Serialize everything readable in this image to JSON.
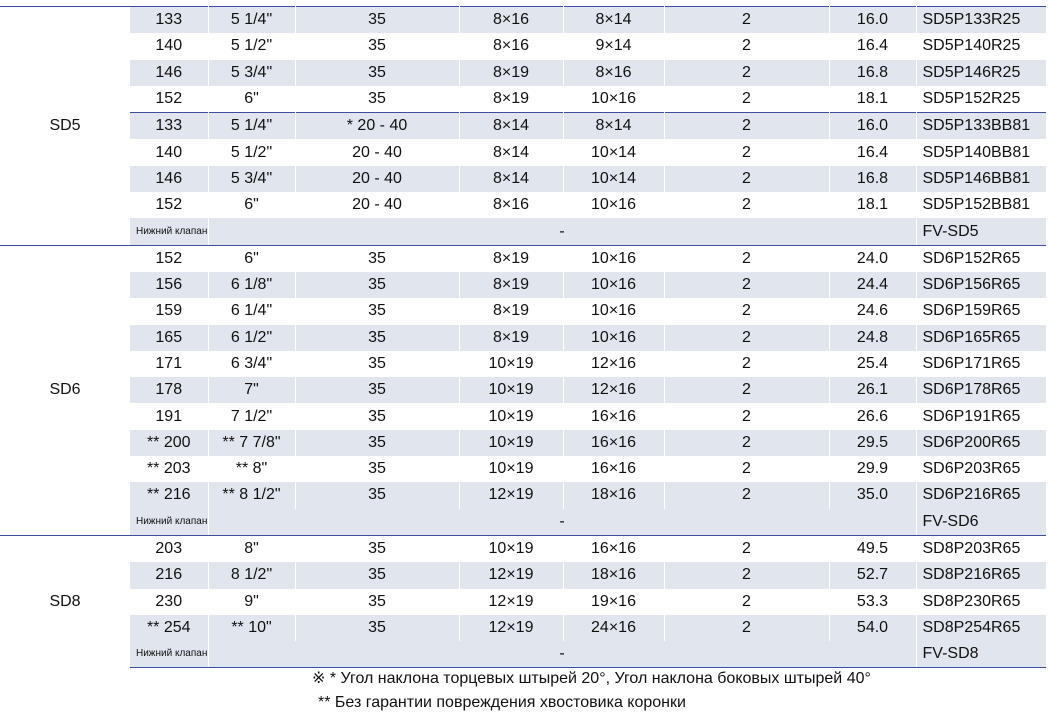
{
  "groups": [
    {
      "name": "SD5",
      "rows": [
        {
          "dmm": "133",
          "din": "5 1/4\"",
          "angle": "35",
          "front": "8×16",
          "side": "8×14",
          "wings": "2",
          "weight": "16.0",
          "code": "SD5P133R25"
        },
        {
          "dmm": "140",
          "din": "5 1/2\"",
          "angle": "35",
          "front": "8×16",
          "side": "9×14",
          "wings": "2",
          "weight": "16.4",
          "code": "SD5P140R25"
        },
        {
          "dmm": "146",
          "din": "5 3/4\"",
          "angle": "35",
          "front": "8×19",
          "side": "8×16",
          "wings": "2",
          "weight": "16.8",
          "code": "SD5P146R25"
        },
        {
          "dmm": "152",
          "din": "6\"",
          "angle": "35",
          "front": "8×19",
          "side": "10×16",
          "wings": "2",
          "weight": "18.1",
          "code": "SD5P152R25"
        },
        {
          "dmm": "133",
          "din": "5 1/4\"",
          "angle": "* 20 - 40",
          "front": "8×14",
          "side": "8×14",
          "wings": "2",
          "weight": "16.0",
          "code": "SD5P133BB81"
        },
        {
          "dmm": "140",
          "din": "5 1/2\"",
          "angle": "20 - 40",
          "front": "8×14",
          "side": "10×14",
          "wings": "2",
          "weight": "16.4",
          "code": "SD5P140BB81"
        },
        {
          "dmm": "146",
          "din": "5 3/4\"",
          "angle": "20 - 40",
          "front": "8×14",
          "side": "10×14",
          "wings": "2",
          "weight": "16.8",
          "code": "SD5P146BB81"
        },
        {
          "dmm": "152",
          "din": "6\"",
          "angle": "20 - 40",
          "front": "8×16",
          "side": "10×16",
          "wings": "2",
          "weight": "18.1",
          "code": "SD5P152BB81"
        }
      ],
      "valve": {
        "label": "Нижний клапан",
        "dash": "-",
        "code": "FV-SD5"
      }
    },
    {
      "name": "SD6",
      "rows": [
        {
          "dmm": "152",
          "din": "6\"",
          "angle": "35",
          "front": "8×19",
          "side": "10×16",
          "wings": "2",
          "weight": "24.0",
          "code": "SD6P152R65"
        },
        {
          "dmm": "156",
          "din": "6 1/8\"",
          "angle": "35",
          "front": "8×19",
          "side": "10×16",
          "wings": "2",
          "weight": "24.4",
          "code": "SD6P156R65"
        },
        {
          "dmm": "159",
          "din": "6 1/4\"",
          "angle": "35",
          "front": "8×19",
          "side": "10×16",
          "wings": "2",
          "weight": "24.6",
          "code": "SD6P159R65"
        },
        {
          "dmm": "165",
          "din": "6 1/2\"",
          "angle": "35",
          "front": "8×19",
          "side": "10×16",
          "wings": "2",
          "weight": "24.8",
          "code": "SD6P165R65"
        },
        {
          "dmm": "171",
          "din": "6 3/4\"",
          "angle": "35",
          "front": "10×19",
          "side": "12×16",
          "wings": "2",
          "weight": "25.4",
          "code": "SD6P171R65"
        },
        {
          "dmm": "178",
          "din": "7\"",
          "angle": "35",
          "front": "10×19",
          "side": "12×16",
          "wings": "2",
          "weight": "26.1",
          "code": "SD6P178R65"
        },
        {
          "dmm": "191",
          "din": "7 1/2\"",
          "angle": "35",
          "front": "10×19",
          "side": "16×16",
          "wings": "2",
          "weight": "26.6",
          "code": "SD6P191R65"
        },
        {
          "dmm": "** 200",
          "din": "** 7 7/8\"",
          "angle": "35",
          "front": "10×19",
          "side": "16×16",
          "wings": "2",
          "weight": "29.5",
          "code": "SD6P200R65"
        },
        {
          "dmm": "** 203",
          "din": "** 8\"",
          "angle": "35",
          "front": "10×19",
          "side": "16×16",
          "wings": "2",
          "weight": "29.9",
          "code": "SD6P203R65"
        },
        {
          "dmm": "** 216",
          "din": "** 8 1/2\"",
          "angle": "35",
          "front": "12×19",
          "side": "18×16",
          "wings": "2",
          "weight": "35.0",
          "code": "SD6P216R65"
        }
      ],
      "valve": {
        "label": "Нижний клапан",
        "dash": "-",
        "code": "FV-SD6"
      }
    },
    {
      "name": "SD8",
      "rows": [
        {
          "dmm": "203",
          "din": "8\"",
          "angle": "35",
          "front": "10×19",
          "side": "16×16",
          "wings": "2",
          "weight": "49.5",
          "code": "SD8P203R65"
        },
        {
          "dmm": "216",
          "din": "8 1/2\"",
          "angle": "35",
          "front": "12×19",
          "side": "18×16",
          "wings": "2",
          "weight": "52.7",
          "code": "SD8P216R65"
        },
        {
          "dmm": "230",
          "din": "9\"",
          "angle": "35",
          "front": "12×19",
          "side": "19×16",
          "wings": "2",
          "weight": "53.3",
          "code": "SD8P230R65"
        },
        {
          "dmm": "** 254",
          "din": "** 10\"",
          "angle": "35",
          "front": "12×19",
          "side": "24×16",
          "wings": "2",
          "weight": "54.0",
          "code": "SD8P254R65"
        }
      ],
      "valve": {
        "label": "Нижний клапан",
        "dash": "-",
        "code": "FV-SD8"
      }
    }
  ],
  "notes": {
    "note1": "※ * Угол наклона торцевых штырей 20°, Угол наклона  боковых штырей 40°",
    "note2": "** Без гарантии повреждения хвостовика коронки"
  },
  "colors": {
    "accent": "#3b4ea2",
    "shade": "#e0e5ee"
  }
}
